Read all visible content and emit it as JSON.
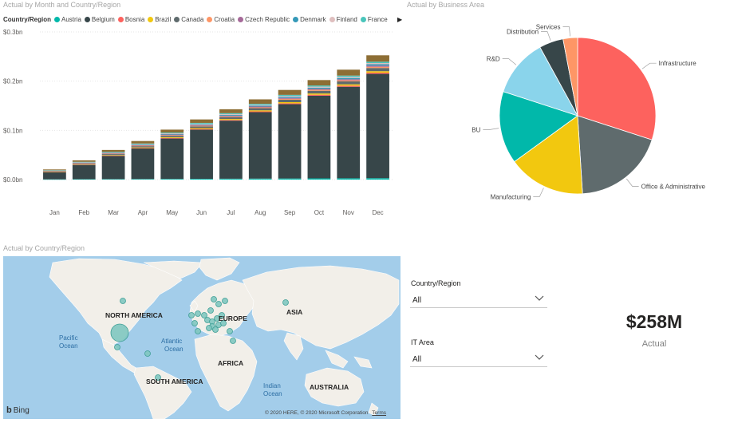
{
  "bar_visual": {
    "title": "Actual by Month and Country/Region"
  },
  "legend": {
    "title": "Country/Region",
    "items": [
      {
        "name": "Austria",
        "color": "#01B8AA"
      },
      {
        "name": "Belgium",
        "color": "#374649"
      },
      {
        "name": "Bosnia",
        "color": "#FD625E"
      },
      {
        "name": "Brazil",
        "color": "#F2C80F"
      },
      {
        "name": "Canada",
        "color": "#5F6B6D"
      },
      {
        "name": "Croatia",
        "color": "#FE9666"
      },
      {
        "name": "Czech Republic",
        "color": "#A66999"
      },
      {
        "name": "Denmark",
        "color": "#3599B8"
      },
      {
        "name": "Finland",
        "color": "#DFBFBF"
      },
      {
        "name": "France",
        "color": "#4AC5BB"
      }
    ]
  },
  "pie_visual": {
    "title": "Actual by Business Area"
  },
  "map_visual": {
    "title": "Actual by Country/Region",
    "labels": {
      "north_america": "NORTH AMERICA",
      "europe": "EUROPE",
      "asia": "ASIA",
      "africa": "AFRICA",
      "south_america": "SOUTH AMERICA",
      "australia": "AUSTRALIA",
      "pacific": "Pacific",
      "pacific2": "Ocean",
      "atlantic": "Atlantic",
      "atlantic2": "Ocean",
      "indian": "Indian",
      "indian2": "Ocean"
    },
    "bing": "Bing",
    "copyright": "© 2020 HERE, © 2020 Microsoft Corporation",
    "terms": "Terms"
  },
  "slicers": [
    {
      "label": "Country/Region",
      "value": "All"
    },
    {
      "label": "IT Area",
      "value": "All"
    }
  ],
  "kpi": {
    "value": "$258M",
    "label": "Actual"
  },
  "chart_data": [
    {
      "type": "bar",
      "stacked": true,
      "title": "Actual by Month and Country/Region",
      "categories": [
        "Jan",
        "Feb",
        "Mar",
        "Apr",
        "May",
        "Jun",
        "Jul",
        "Aug",
        "Sep",
        "Oct",
        "Nov",
        "Dec"
      ],
      "y_ticks": [
        "$0.0bn",
        "$0.1bn",
        "$0.2bn",
        "$0.3bn"
      ],
      "ylim": [
        0,
        0.3
      ],
      "series": [
        {
          "name": "Austria",
          "color": "#01B8AA",
          "values": [
            0.0005,
            0.0008,
            0.001,
            0.0012,
            0.0014,
            0.0016,
            0.0018,
            0.002,
            0.0022,
            0.0024,
            0.0026,
            0.0028
          ]
        },
        {
          "name": "Belgium",
          "color": "#374649",
          "values": [
            0.0145,
            0.029,
            0.047,
            0.062,
            0.082,
            0.1,
            0.118,
            0.135,
            0.151,
            0.168,
            0.186,
            0.212
          ]
        },
        {
          "name": "Bosnia",
          "color": "#FD625E",
          "values": [
            0.0004,
            0.0006,
            0.0008,
            0.001,
            0.0012,
            0.0013,
            0.0014,
            0.0016,
            0.0018,
            0.002,
            0.0022,
            0.0024
          ]
        },
        {
          "name": "Brazil",
          "color": "#F2C80F",
          "values": [
            0.0005,
            0.0008,
            0.001,
            0.0012,
            0.0015,
            0.0017,
            0.0019,
            0.0021,
            0.0023,
            0.0025,
            0.0027,
            0.003
          ]
        },
        {
          "name": "Canada",
          "color": "#5F6B6D",
          "values": [
            0.001,
            0.0015,
            0.002,
            0.0025,
            0.003,
            0.0035,
            0.004,
            0.0045,
            0.005,
            0.0055,
            0.006,
            0.0065
          ]
        },
        {
          "name": "Croatia",
          "color": "#FE9666",
          "values": [
            0.0004,
            0.0006,
            0.0008,
            0.001,
            0.0012,
            0.0013,
            0.0014,
            0.0016,
            0.0018,
            0.002,
            0.0022,
            0.0024
          ]
        },
        {
          "name": "Czech Republic",
          "color": "#A66999",
          "values": [
            0.0004,
            0.0006,
            0.0008,
            0.001,
            0.0012,
            0.0013,
            0.0014,
            0.0016,
            0.0018,
            0.002,
            0.0022,
            0.0024
          ]
        },
        {
          "name": "Denmark",
          "color": "#3599B8",
          "values": [
            0.0005,
            0.0008,
            0.001,
            0.0012,
            0.0014,
            0.0016,
            0.0018,
            0.002,
            0.0022,
            0.0024,
            0.0026,
            0.0028
          ]
        },
        {
          "name": "Finland",
          "color": "#DFBFBF",
          "values": [
            0.0004,
            0.0006,
            0.0008,
            0.001,
            0.0012,
            0.0013,
            0.0014,
            0.0016,
            0.0018,
            0.002,
            0.0022,
            0.0024
          ]
        },
        {
          "name": "France",
          "color": "#4AC5BB",
          "values": [
            0.0005,
            0.0008,
            0.001,
            0.0012,
            0.0014,
            0.0016,
            0.0018,
            0.002,
            0.0022,
            0.0024,
            0.0026,
            0.0028
          ]
        },
        {
          "color": "#8D6E35",
          "values": [
            0.0015,
            0.003,
            0.004,
            0.005,
            0.006,
            0.007,
            0.008,
            0.009,
            0.01,
            0.011,
            0.012,
            0.013
          ]
        }
      ]
    },
    {
      "type": "pie",
      "title": "Actual by Business Area",
      "slices": [
        {
          "label": "Infrastructure",
          "value": 30,
          "color": "#FD625E"
        },
        {
          "label": "Office & Administrative",
          "value": 19,
          "color": "#5F6B6D"
        },
        {
          "label": "Manufacturing",
          "value": 16,
          "color": "#F2C80F"
        },
        {
          "label": "BU",
          "value": 15,
          "color": "#01B8AA"
        },
        {
          "label": "R&D",
          "value": 12,
          "color": "#8AD4EB"
        },
        {
          "label": "Distribution",
          "value": 5,
          "color": "#374649"
        },
        {
          "label": "Services",
          "value": 3,
          "color": "#FE9666"
        }
      ]
    }
  ]
}
